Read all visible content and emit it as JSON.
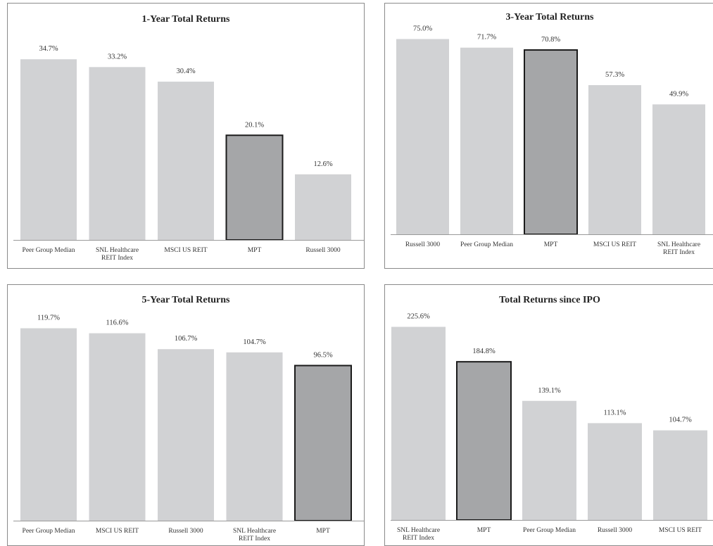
{
  "colors": {
    "bar": "#d1d2d4",
    "highlight": "#a5a6a8",
    "highlight_stroke": "#1b1b1b"
  },
  "chart_data": [
    {
      "type": "bar",
      "title": "1-Year Total Returns",
      "ylim": [
        0,
        40
      ],
      "highlight": "MPT",
      "categories": [
        [
          "Peer Group Median"
        ],
        [
          "SNL Healthcare",
          "REIT Index"
        ],
        [
          "MSCI US REIT"
        ],
        [
          "MPT"
        ],
        [
          "Russell 3000"
        ]
      ],
      "category_names": [
        "Peer Group Median",
        "SNL Healthcare REIT Index",
        "MSCI US REIT",
        "MPT",
        "Russell 3000"
      ],
      "values": [
        34.7,
        33.2,
        30.4,
        20.1,
        12.6
      ],
      "labels": [
        "34.7%",
        "33.2%",
        "30.4%",
        "20.1%",
        "12.6%"
      ]
    },
    {
      "type": "bar",
      "title": "3-Year Total Returns",
      "ylim": [
        0,
        80
      ],
      "highlight": "MPT",
      "categories": [
        [
          "Russell 3000"
        ],
        [
          "Peer Group Median"
        ],
        [
          "MPT"
        ],
        [
          "MSCI US REIT"
        ],
        [
          "SNL Healthcare",
          "REIT Index"
        ]
      ],
      "category_names": [
        "Russell 3000",
        "Peer Group Median",
        "MPT",
        "MSCI US REIT",
        "SNL Healthcare REIT Index"
      ],
      "values": [
        75.0,
        71.7,
        70.8,
        57.3,
        49.9
      ],
      "labels": [
        "75.0%",
        "71.7%",
        "70.8%",
        "57.3%",
        "49.9%"
      ]
    },
    {
      "type": "bar",
      "title": "5-Year Total Returns",
      "ylim": [
        0,
        130
      ],
      "highlight": "MPT",
      "categories": [
        [
          "Peer Group Median"
        ],
        [
          "MSCI US REIT"
        ],
        [
          "Russell 3000"
        ],
        [
          "SNL Healthcare",
          "REIT Index"
        ],
        [
          "MPT"
        ]
      ],
      "category_names": [
        "Peer Group Median",
        "MSCI US REIT",
        "Russell 3000",
        "SNL Healthcare REIT Index",
        "MPT"
      ],
      "values": [
        119.7,
        116.6,
        106.7,
        104.7,
        96.5
      ],
      "labels": [
        "119.7%",
        "116.6%",
        "106.7%",
        "104.7%",
        "96.5%"
      ]
    },
    {
      "type": "bar",
      "title": "Total Returns since IPO",
      "ylim": [
        0,
        240
      ],
      "highlight": "MPT",
      "categories": [
        [
          "SNL Healthcare",
          "REIT Index"
        ],
        [
          "MPT"
        ],
        [
          "Peer Group Median"
        ],
        [
          "Russell 3000"
        ],
        [
          "MSCI US REIT"
        ]
      ],
      "category_names": [
        "SNL Healthcare REIT Index",
        "MPT",
        "Peer Group Median",
        "Russell 3000",
        "MSCI US REIT"
      ],
      "values": [
        225.6,
        184.8,
        139.1,
        113.1,
        104.7
      ],
      "labels": [
        "225.6%",
        "184.8%",
        "139.1%",
        "113.1%",
        "104.7%"
      ]
    }
  ]
}
